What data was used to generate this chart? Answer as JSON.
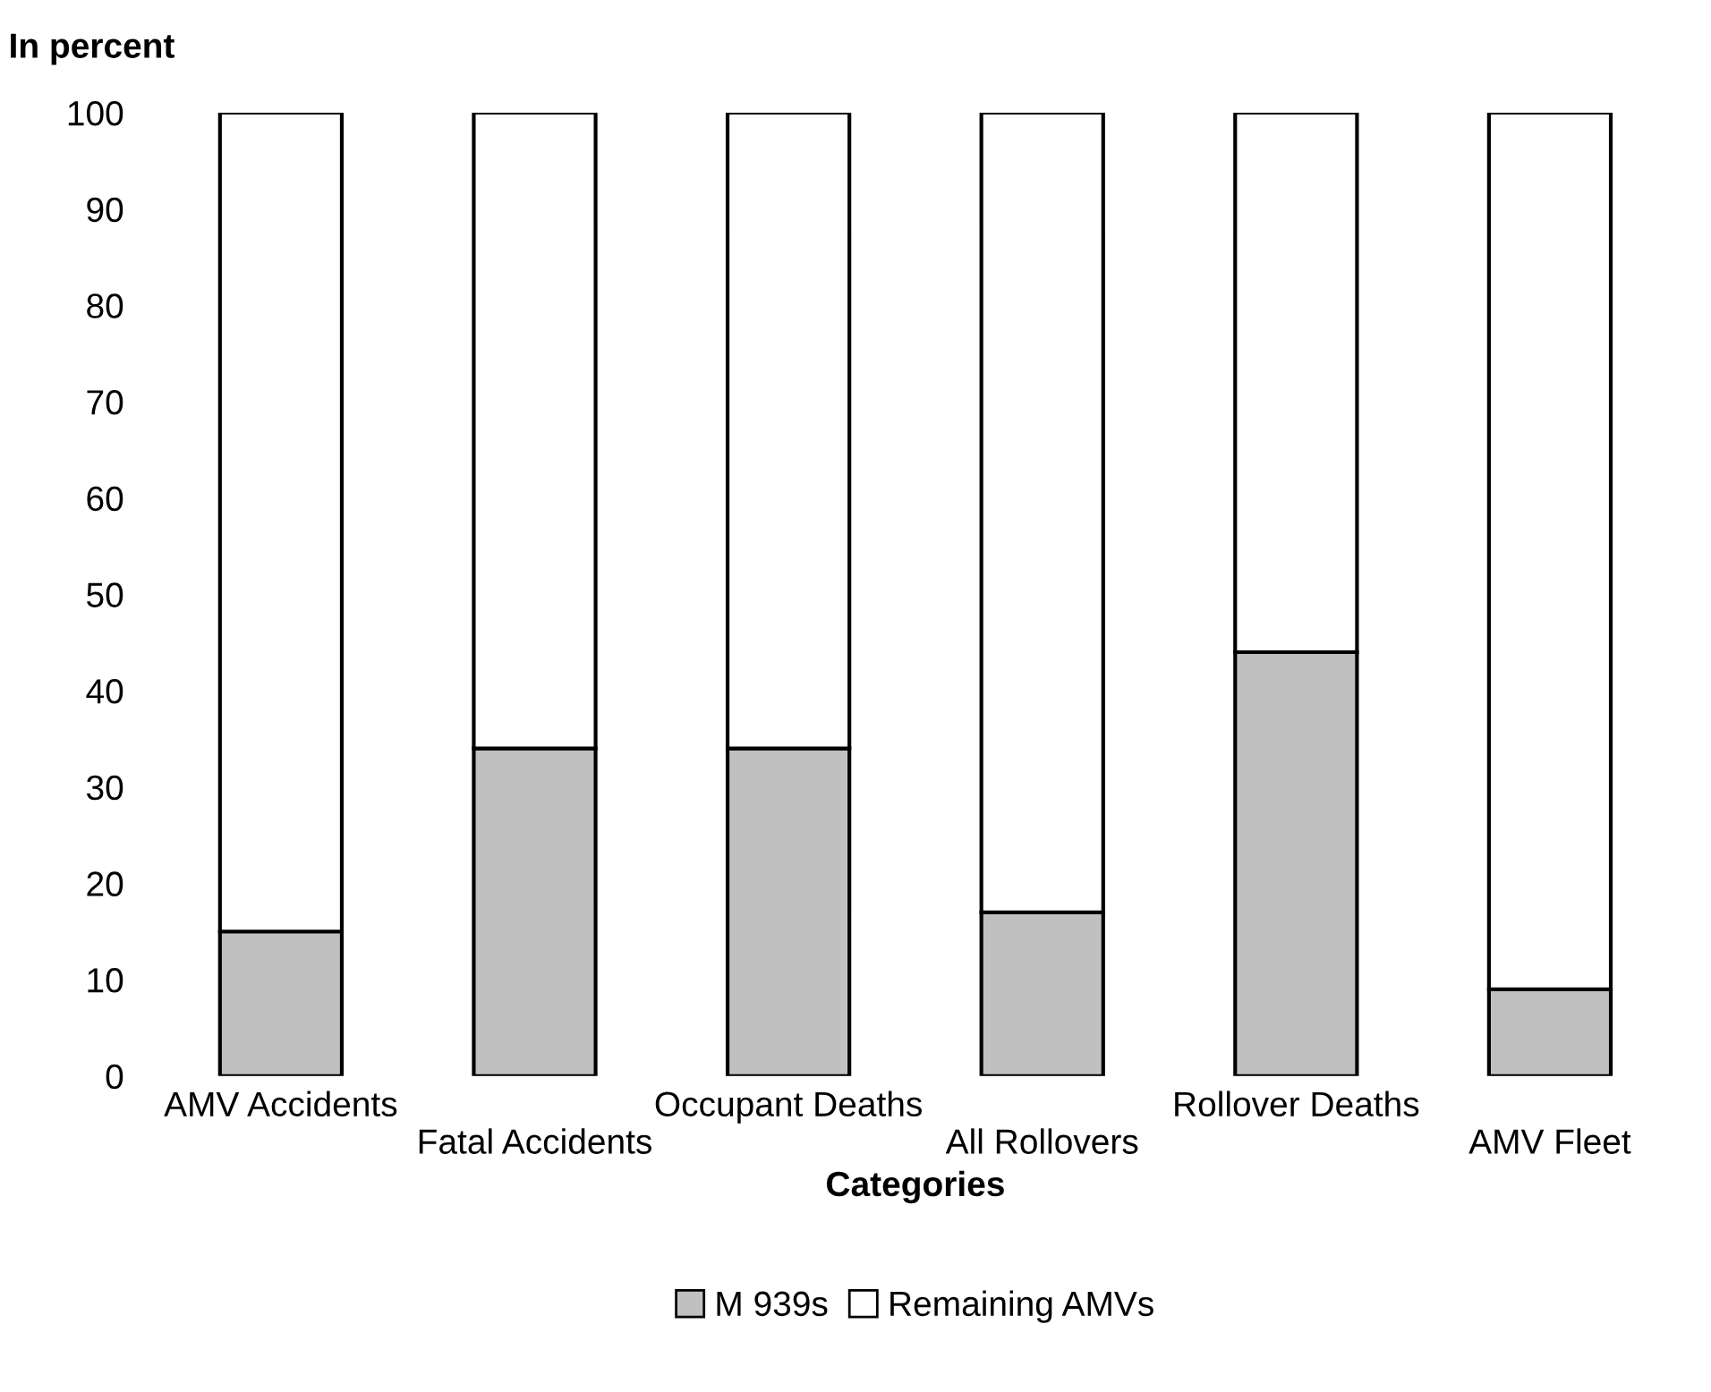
{
  "chart_data": {
    "type": "bar",
    "stacked": true,
    "ylabel": "In percent",
    "xlabel": "Categories",
    "categories": [
      "AMV Accidents",
      "Fatal Accidents",
      "Occupant Deaths",
      "All Rollovers",
      "Rollover Deaths",
      "AMV Fleet"
    ],
    "series": [
      {
        "name": "M 939s",
        "color": "#c0c0c0",
        "values": [
          15,
          34,
          34,
          17,
          44,
          9
        ]
      },
      {
        "name": "Remaining AMVs",
        "color": "#ffffff",
        "values": [
          85,
          66,
          66,
          83,
          56,
          91
        ]
      }
    ],
    "ylim": [
      0,
      100
    ],
    "yticks": [
      0,
      10,
      20,
      30,
      40,
      50,
      60,
      70,
      80,
      90,
      100
    ],
    "grid": false,
    "legend": "bottom"
  }
}
